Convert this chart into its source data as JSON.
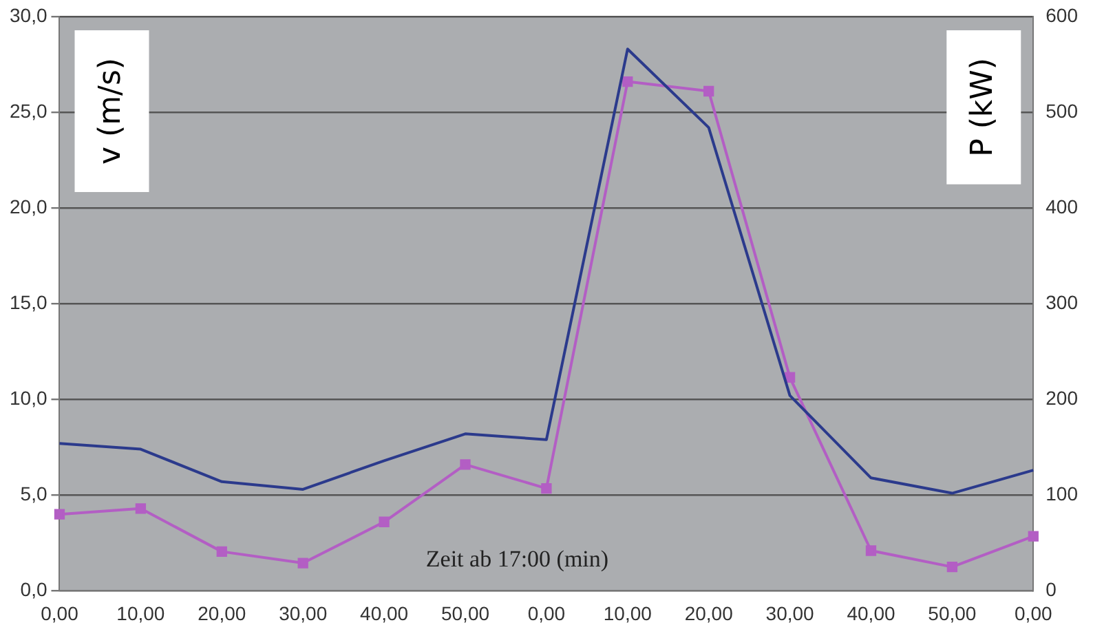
{
  "chart_data": {
    "type": "line",
    "xlabel": "Zeit ab 17:00 (min)",
    "ylabel": "v (m/s)",
    "y2label": "P (kW)",
    "categories": [
      "0,00",
      "10,00",
      "20,00",
      "30,00",
      "40,00",
      "50,00",
      "0,00",
      "10,00",
      "20,00",
      "30,00",
      "40,00",
      "50,00",
      "0,00"
    ],
    "series": [
      {
        "color": "#2b3a8c",
        "marker": "none",
        "values": [
          7.7,
          7.4,
          5.7,
          5.3,
          6.8,
          8.2,
          7.9,
          28.3,
          24.2,
          10.2,
          5.9,
          5.1,
          6.3
        ]
      },
      {
        "color": "#b35ec4",
        "marker": "square",
        "axis": "y2",
        "values": [
          80,
          86,
          41,
          29,
          72,
          132,
          107,
          532,
          522,
          223,
          42,
          25,
          57
        ]
      }
    ],
    "ylim": [
      0,
      30
    ],
    "yticks": [
      {
        "value": 0,
        "label": "0,0"
      },
      {
        "value": 5,
        "label": "5,0"
      },
      {
        "value": 10,
        "label": "10,0"
      },
      {
        "value": 15,
        "label": "15,0"
      },
      {
        "value": 20,
        "label": "20,0"
      },
      {
        "value": 25,
        "label": "25,0"
      },
      {
        "value": 30,
        "label": "30,0"
      }
    ],
    "y2lim": [
      0,
      600
    ],
    "y2ticks": [
      0,
      100,
      200,
      300,
      400,
      500,
      600
    ],
    "grid": "y",
    "legend": false
  }
}
